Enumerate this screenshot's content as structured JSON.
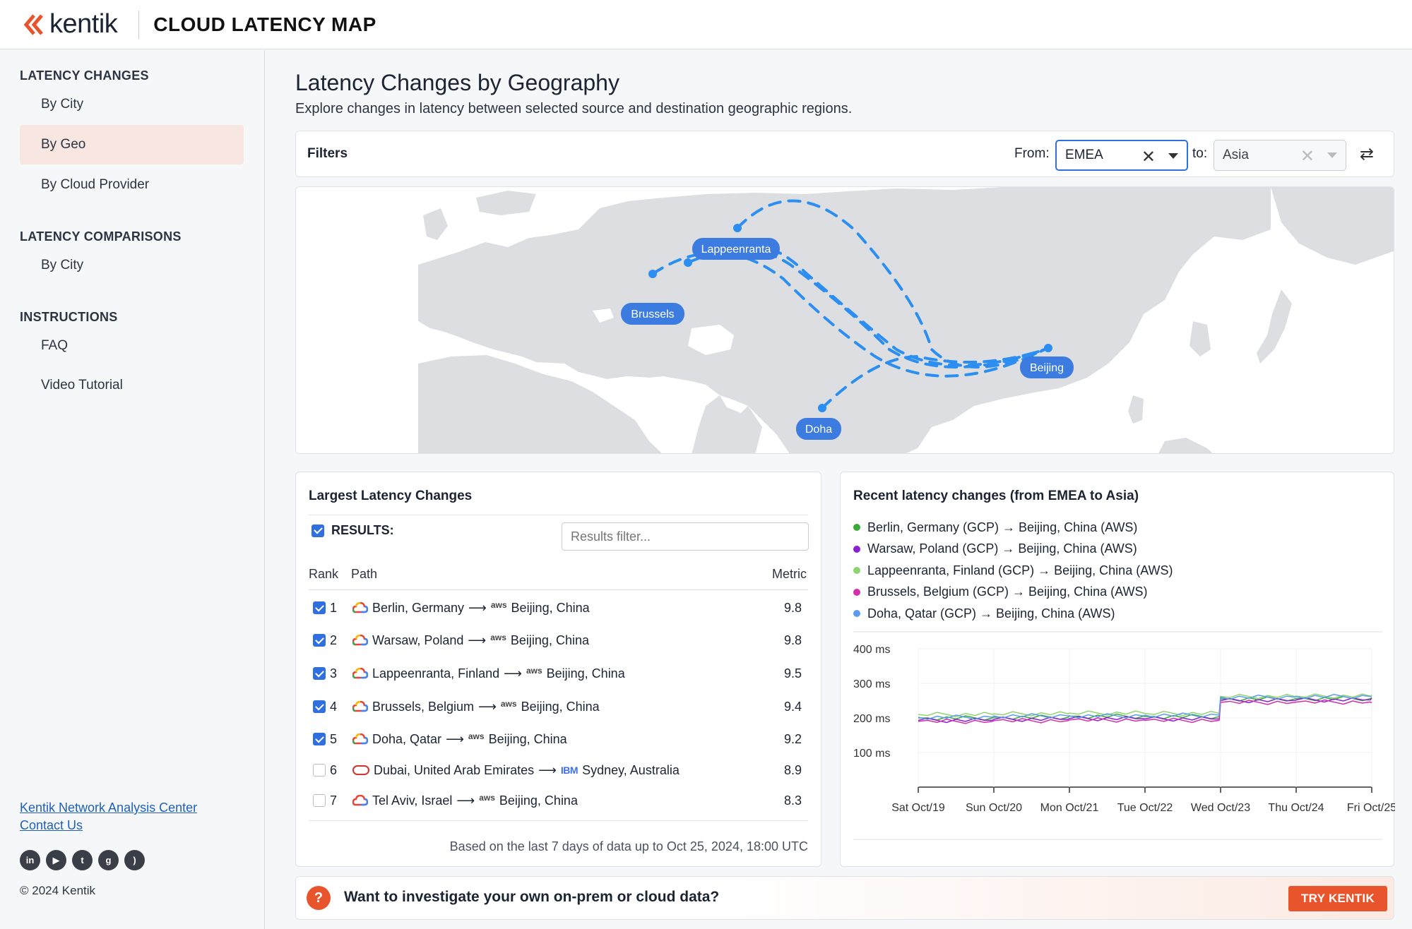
{
  "header": {
    "brand": "kentik",
    "title": "CLOUD LATENCY MAP",
    "brand_color": "#e8542c"
  },
  "sidebar": {
    "sections": [
      {
        "title": "LATENCY CHANGES",
        "items": [
          "By City",
          "By Geo",
          "By Cloud Provider"
        ]
      },
      {
        "title": "LATENCY COMPARISONS",
        "items": [
          "By City"
        ]
      },
      {
        "title": "INSTRUCTIONS",
        "items": [
          "FAQ",
          "Video Tutorial"
        ]
      }
    ],
    "active_item": "By Geo",
    "footer_links": [
      "Kentik Network Analysis Center",
      "Contact Us"
    ],
    "social_icons": [
      "linkedin-icon",
      "youtube-icon",
      "twitter-icon",
      "github-icon",
      "rss-icon"
    ],
    "copyright": "© 2024 Kentik"
  },
  "page": {
    "title": "Latency Changes by Geography",
    "subtitle": "Explore changes in latency between selected source and destination geographic regions."
  },
  "filters": {
    "label": "Filters",
    "from_label": "From:",
    "from_value": "EMEA",
    "to_label": "to:",
    "to_value": "Asia"
  },
  "map": {
    "cities": [
      "Lappeenranta",
      "Brussels",
      "Beijing",
      "Doha"
    ],
    "route_color": "#2b8ef0",
    "label_color": "#3c7be0"
  },
  "table": {
    "title": "Largest Latency Changes",
    "results_label": "RESULTS:",
    "filter_placeholder": "Results filter...",
    "columns": {
      "rank": "Rank",
      "path": "Path",
      "metric": "Metric"
    },
    "rows": [
      {
        "rank": "1",
        "src": "Berlin, Germany",
        "src_cloud": "gcp",
        "dst_cloud": "aws",
        "dst": "Beijing, China",
        "metric": "9.8",
        "checked": true
      },
      {
        "rank": "2",
        "src": "Warsaw, Poland",
        "src_cloud": "gcp",
        "dst_cloud": "aws",
        "dst": "Beijing, China",
        "metric": "9.8",
        "checked": true
      },
      {
        "rank": "3",
        "src": "Lappeenranta, Finland",
        "src_cloud": "gcp",
        "dst_cloud": "aws",
        "dst": "Beijing, China",
        "metric": "9.5",
        "checked": true
      },
      {
        "rank": "4",
        "src": "Brussels, Belgium",
        "src_cloud": "gcp",
        "dst_cloud": "aws",
        "dst": "Beijing, China",
        "metric": "9.4",
        "checked": true
      },
      {
        "rank": "5",
        "src": "Doha, Qatar",
        "src_cloud": "gcp",
        "dst_cloud": "aws",
        "dst": "Beijing, China",
        "metric": "9.2",
        "checked": true
      },
      {
        "rank": "6",
        "src": "Dubai, United Arab Emirates",
        "src_cloud": "azure",
        "dst_cloud": "ibm",
        "dst": "Sydney, Australia",
        "metric": "8.9",
        "checked": false
      },
      {
        "rank": "7",
        "src": "Tel Aviv, Israel",
        "src_cloud": "gcp",
        "dst_cloud": "aws",
        "dst": "Beijing, China",
        "metric": "8.3",
        "checked": false
      }
    ],
    "footnote": "Based on the last 7 days of data up to Oct 25, 2024, 18:00 UTC"
  },
  "chart_data": {
    "type": "line",
    "title": "Recent latency changes (from EMEA to Asia)",
    "x": [
      "Sat Oct/19",
      "Sun Oct/20",
      "Mon Oct/21",
      "Tue Oct/22",
      "Wed Oct/23",
      "Thu Oct/24",
      "Fri Oct/25"
    ],
    "ytick_labels": [
      "400 ms",
      "300 ms",
      "200 ms",
      "100 ms"
    ],
    "ylim": [
      0,
      400
    ],
    "series": [
      {
        "name": "Berlin, Germany (GCP) → Beijing, China (AWS)",
        "color": "#3aaa35",
        "values": [
          200,
          202,
          205,
          204,
          255,
          256,
          258
        ]
      },
      {
        "name": "Warsaw, Poland (GCP) → Beijing, China (AWS)",
        "color": "#8b1fd1",
        "values": [
          193,
          196,
          198,
          197,
          250,
          252,
          257
        ]
      },
      {
        "name": "Lappeenranta, Finland (GCP) → Beijing, China (AWS)",
        "color": "#8ed46f",
        "values": [
          210,
          212,
          214,
          213,
          262,
          263,
          266
        ]
      },
      {
        "name": "Brussels, Belgium (GCP) → Beijing, China (AWS)",
        "color": "#d12fae",
        "values": [
          190,
          192,
          194,
          193,
          245,
          246,
          244
        ]
      },
      {
        "name": "Doha, Qatar (GCP) → Beijing, China (AWS)",
        "color": "#5b9bf0",
        "values": [
          202,
          206,
          206,
          208,
          260,
          262,
          262
        ]
      }
    ],
    "legend": "top-left"
  },
  "cta": {
    "text": "Want to investigate your own on-prem or cloud data?",
    "button": "TRY KENTIK"
  }
}
